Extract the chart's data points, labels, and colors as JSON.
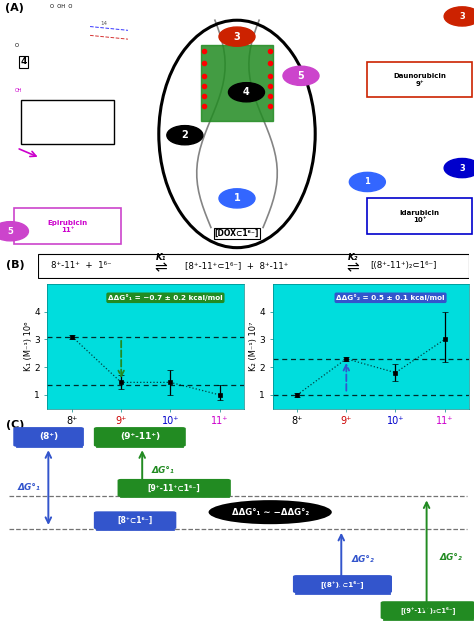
{
  "panel_A_label": "(A)",
  "panel_B_label": "(B)",
  "panel_C_label": "(C)",
  "bg_color": "#ffffff",
  "cyan_bg": "#00dddd",
  "K1_label": "K₁",
  "K2_label": "K₂",
  "idox_label": "[DOX⊂1⁶⁻]",
  "xticklabels": [
    "8⁺",
    "9⁺",
    "10⁺",
    "11⁺"
  ],
  "xtick_colors": [
    "black",
    "#cc0000",
    "#0000cc",
    "#cc00cc"
  ],
  "K1_values": [
    3.1,
    1.45,
    1.45,
    1.0
  ],
  "K1_errors_lo": [
    0.07,
    0.25,
    0.45,
    0.2
  ],
  "K1_errors_hi": [
    0.07,
    0.25,
    0.45,
    0.35
  ],
  "K1_ref_high": 3.1,
  "K1_ref_low": 1.35,
  "K1_ylabel": "K₁ (M⁻¹) 10⁶",
  "K1_ddG": "ΔΔG°₁ = −0.7 ± 0.2 kcal/mol",
  "K2_values": [
    1.0,
    2.3,
    1.8,
    3.0
  ],
  "K2_errors_lo": [
    0.07,
    0.07,
    0.3,
    0.8
  ],
  "K2_errors_hi": [
    0.07,
    0.07,
    0.3,
    1.0
  ],
  "K2_ref_high": 2.3,
  "K2_ref_low": 1.0,
  "K2_ylabel": "K₂ (M⁻¹) 10⁷",
  "K2_ddG": "ΔΔG°₂ = 0.5 ± 0.1 kcal/mol",
  "green_color": "#228B22",
  "blue_color": "#3355cc",
  "red_color": "#cc0000",
  "magenta_color": "#cc00cc",
  "box_8_label": "(8⁺)",
  "box_911_label": "(9⁺-11⁺)",
  "box_911_1_label": "[9⁺-11⁺⊂1⁶⁻]",
  "box_8_1_label": "[8⁺⊂1⁶⁻]",
  "box_82_1_label": "[(8⁺)₂⊂1⁶⁻]",
  "box_9112_1_label": "[(9⁺-11⁺)₂⊂1⁶⁻]",
  "ddG_label": "ΔΔG°₁ ∼ −ΔΔG°₂",
  "dG1_blue_label": "ΔG°₁",
  "dG1_green_label": "ΔG°₁",
  "dG2_blue_label": "ΔG°₂",
  "dG2_green_label": "ΔG°₂"
}
